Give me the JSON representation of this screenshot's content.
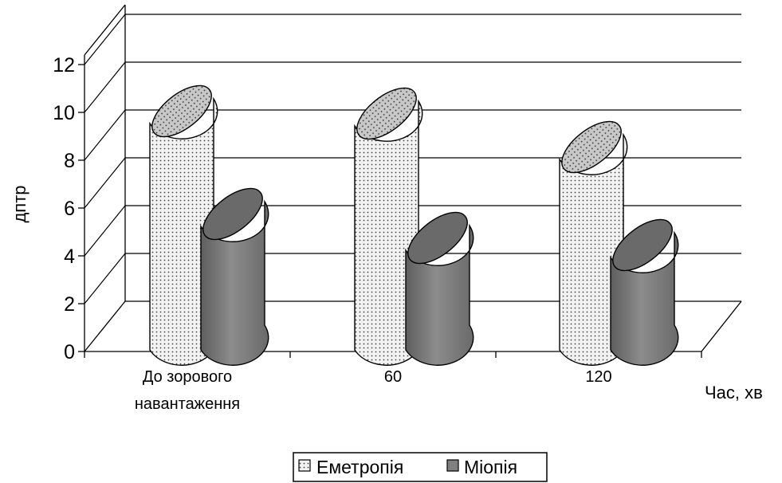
{
  "chart_data": {
    "type": "bar",
    "style": "3d-cylinder",
    "categories": [
      [
        "До зорового",
        "навантаження"
      ],
      [
        "60"
      ],
      [
        "120"
      ]
    ],
    "series": [
      {
        "name": "Еметропія",
        "values": [
          9.7,
          9.6,
          8.2
        ],
        "fill": "#eeeeee",
        "pattern": "dotted"
      },
      {
        "name": "Міопія",
        "values": [
          5.4,
          4.4,
          4.1
        ],
        "fill": "#808080",
        "pattern": "solid"
      }
    ],
    "yticks": [
      "0",
      "2",
      "4",
      "6",
      "8",
      "10",
      "12"
    ],
    "ylim": [
      0,
      12
    ],
    "ylabel": "дптр",
    "xlabel": "Час, хв",
    "grid": true,
    "legend": "bottom"
  }
}
